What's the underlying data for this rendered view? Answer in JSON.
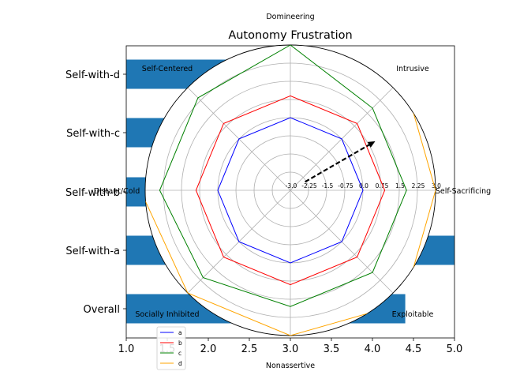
{
  "chart_data": [
    {
      "type": "bar",
      "orientation": "horizontal",
      "title": "Autonomy Frustration",
      "categories": [
        "Overall",
        "Self-with-a",
        "Self-with-b",
        "Self-with-c",
        "Self-with-d"
      ],
      "values": [
        4.4,
        5.0,
        2.6,
        1.6,
        3.6
      ],
      "xlim": [
        1.0,
        5.0
      ],
      "x_ticks": [
        "1.0",
        "1.5",
        "2.0",
        "2.5",
        "3.0",
        "3.5",
        "4.0",
        "4.5",
        "5.0"
      ],
      "color": "#1f77b4"
    },
    {
      "type": "radar",
      "axes": [
        "Self-Sacrificing",
        "Intrusive",
        "Domineering",
        "Self-Centered",
        "Distant/Cold",
        "Socially Inhibited",
        "Nonassertive",
        "Exploitable"
      ],
      "rlim": [
        -3.0,
        3.0
      ],
      "r_ticks": [
        "-3.0",
        "-2.25",
        "-1.5",
        "-0.75",
        "0.0",
        "0.75",
        "1.5",
        "2.25",
        "3.0"
      ],
      "grid": true,
      "legend_position": "bottom-left",
      "series": [
        {
          "name": "a",
          "color": "#0000ff",
          "values": [
            0.0,
            0.0,
            0.0,
            0.0,
            0.0,
            0.0,
            0.0,
            0.0
          ]
        },
        {
          "name": "b",
          "color": "#ff0000",
          "values": [
            0.9,
            0.9,
            0.9,
            0.9,
            0.9,
            0.9,
            0.9,
            0.9
          ]
        },
        {
          "name": "c",
          "color": "#008000",
          "values": [
            1.8,
            1.8,
            3.0,
            2.4,
            2.4,
            2.1,
            1.8,
            1.8
          ]
        },
        {
          "name": "d",
          "color": "#ffa500",
          "values": [
            3.0,
            3.6,
            4.2,
            4.2,
            3.2,
            3.0,
            3.0,
            3.6
          ]
        }
      ],
      "arrow": {
        "angle_deg": 30,
        "r_start": -2.3,
        "r_end": 1.05,
        "color": "#000000"
      }
    }
  ]
}
